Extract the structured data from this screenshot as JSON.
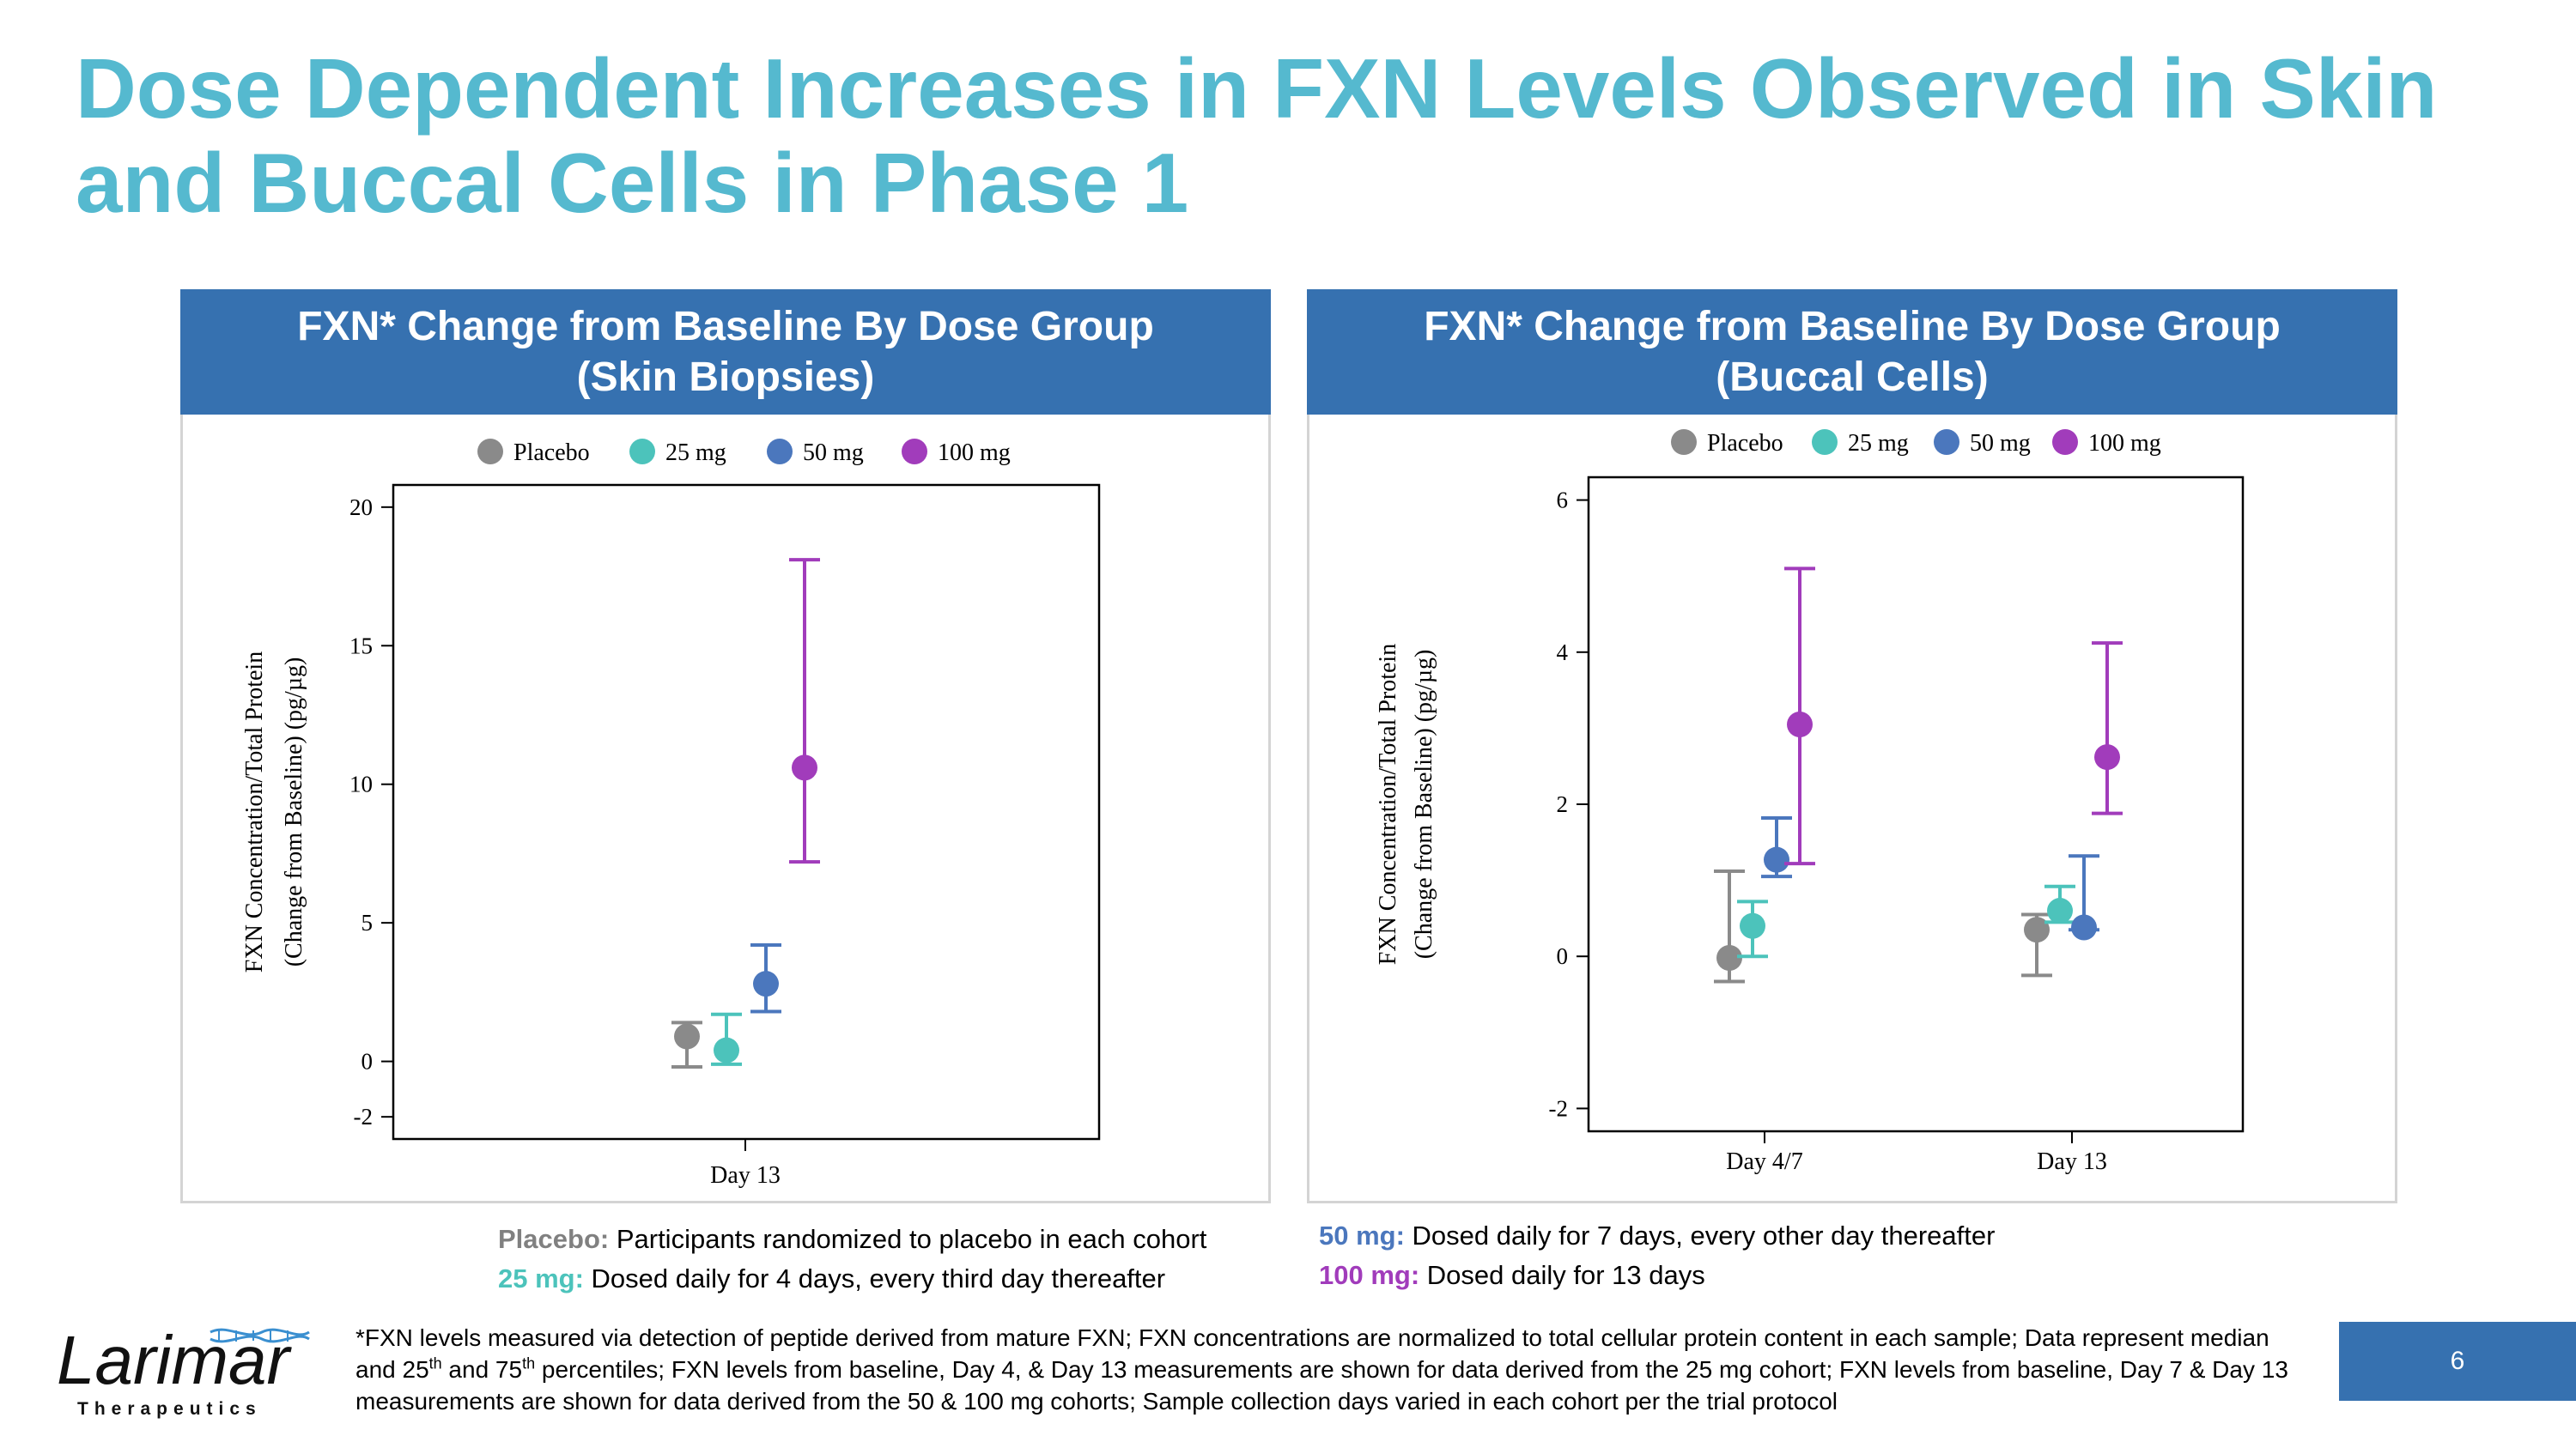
{
  "title": {
    "line1": "Dose Dependent Increases in FXN Levels Observed in Skin",
    "line2": "and Buccal Cells in Phase 1"
  },
  "colors": {
    "title": "#55b9cf",
    "header_bg": "#3671b0",
    "placebo": "#8a8a8a",
    "mg25": "#4cc3bb",
    "mg50": "#4b77bd",
    "mg100": "#a13cbb"
  },
  "chart_data": [
    {
      "type": "scatter",
      "title_line1": "FXN* Change from Baseline By Dose Group",
      "title_line2": "(Skin Biopsies)",
      "ylabel_line1": "FXN Concentration/Total Protein",
      "ylabel_line2": "(Change from Baseline) (pg/µg)",
      "xlabel": "",
      "categories": [
        "Day 13"
      ],
      "ylim": [
        -2.8,
        20.8
      ],
      "yticks": [
        -2,
        0,
        5,
        10,
        15,
        20
      ],
      "legend_position": "top",
      "series": [
        {
          "name": "Placebo",
          "color": "#8a8a8a",
          "points": [
            {
              "x": "Day 13",
              "median": 0.9,
              "q1": -0.2,
              "q3": 1.4
            }
          ]
        },
        {
          "name": "25 mg",
          "color": "#4cc3bb",
          "points": [
            {
              "x": "Day 13",
              "median": 0.4,
              "q1": -0.1,
              "q3": 1.7
            }
          ]
        },
        {
          "name": "50 mg",
          "color": "#4b77bd",
          "points": [
            {
              "x": "Day 13",
              "median": 2.8,
              "q1": 1.8,
              "q3": 4.2
            }
          ]
        },
        {
          "name": "100 mg",
          "color": "#a13cbb",
          "points": [
            {
              "x": "Day 13",
              "median": 10.6,
              "q1": 7.2,
              "q3": 18.1
            }
          ]
        }
      ]
    },
    {
      "type": "scatter",
      "title_line1": "FXN* Change from Baseline By Dose Group",
      "title_line2": "(Buccal Cells)",
      "ylabel_line1": "FXN Concentration/Total Protein",
      "ylabel_line2": "(Change from Baseline) (pg/µg)",
      "xlabel": "",
      "categories": [
        "Day 4/7",
        "Day 13"
      ],
      "ylim": [
        -2.3,
        6.3
      ],
      "yticks": [
        -2,
        0,
        2,
        4,
        6
      ],
      "legend_position": "top",
      "series": [
        {
          "name": "Placebo",
          "color": "#8a8a8a",
          "points": [
            {
              "x": "Day 4/7",
              "median": -0.02,
              "q1": -0.33,
              "q3": 1.12
            },
            {
              "x": "Day 13",
              "median": 0.35,
              "q1": -0.25,
              "q3": 0.55
            }
          ]
        },
        {
          "name": "25 mg",
          "color": "#4cc3bb",
          "points": [
            {
              "x": "Day 4/7",
              "median": 0.4,
              "q1": 0.0,
              "q3": 0.72
            },
            {
              "x": "Day 13",
              "median": 0.6,
              "q1": 0.45,
              "q3": 0.92
            }
          ]
        },
        {
          "name": "50 mg",
          "color": "#4b77bd",
          "points": [
            {
              "x": "Day 4/7",
              "median": 1.27,
              "q1": 1.05,
              "q3": 1.82
            },
            {
              "x": "Day 13",
              "median": 0.38,
              "q1": 0.35,
              "q3": 1.32
            }
          ]
        },
        {
          "name": "100 mg",
          "color": "#a13cbb",
          "points": [
            {
              "x": "Day 4/7",
              "median": 3.05,
              "q1": 1.22,
              "q3": 5.1
            },
            {
              "x": "Day 13",
              "median": 2.62,
              "q1": 1.88,
              "q3": 4.12
            }
          ]
        }
      ]
    }
  ],
  "descriptions": {
    "placebo_label": "Placebo:",
    "placebo_text": " Participants randomized to placebo in each cohort",
    "mg25_label": "25 mg:",
    "mg25_text": " Dosed daily for 4 days, every third day thereafter",
    "mg50_label": "50 mg:",
    "mg50_text": " Dosed daily for 7 days, every other day thereafter",
    "mg100_label": "100 mg:",
    "mg100_text": " Dosed daily for 13 days"
  },
  "footnote": {
    "part1": "*FXN levels measured via detection of peptide derived from mature FXN; FXN concentrations are normalized to total cellular protein content in each sample; Data represent median and 25",
    "sup1": "th",
    "part2": " and 75",
    "sup2": "th",
    "part3": " percentiles; FXN levels from baseline, Day 4, & Day 13 measurements are shown for data derived from the 25 mg cohort; FXN levels from baseline, Day 7 & Day 13 measurements are shown for data derived from the 50 & 100 mg cohorts; Sample collection days varied in each cohort per the trial protocol"
  },
  "logo": {
    "name": "Larimar",
    "tagline": "Therapeutics"
  },
  "page_number": "6"
}
